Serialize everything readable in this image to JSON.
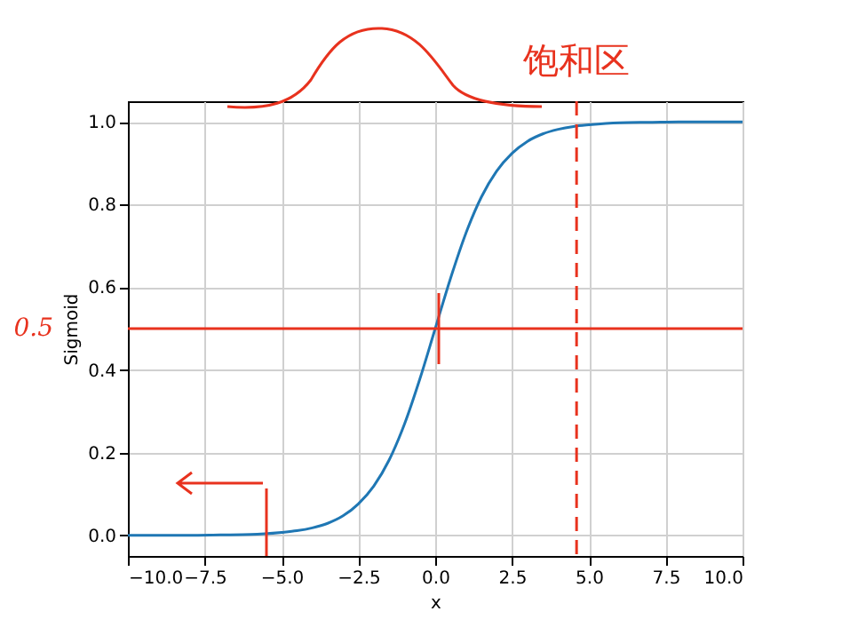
{
  "chart_data": {
    "type": "line",
    "xlabel": "x",
    "ylabel": "Sigmoid",
    "x": [
      -10,
      -9,
      -8,
      -7,
      -6,
      -5,
      -4.5,
      -4,
      -3.5,
      -3,
      -2.5,
      -2,
      -1.5,
      -1,
      -0.5,
      0,
      0.5,
      1,
      1.5,
      2,
      2.5,
      3,
      3.5,
      4,
      4.5,
      5,
      6,
      7,
      8,
      9,
      10
    ],
    "series": [
      {
        "color": "#1f77b4",
        "values": [
          0.0,
          0.0,
          0.0,
          0.001,
          0.002,
          0.007,
          0.011,
          0.018,
          0.029,
          0.047,
          0.076,
          0.119,
          0.182,
          0.269,
          0.378,
          0.5,
          0.622,
          0.731,
          0.818,
          0.881,
          0.924,
          0.953,
          0.971,
          0.982,
          0.989,
          0.993,
          0.998,
          0.999,
          1.0,
          1.0,
          1.0
        ]
      }
    ],
    "xlim": [
      -10,
      10
    ],
    "ylim": [
      -0.05,
      1.05
    ],
    "xticks": [
      {
        "value": -10,
        "label": "−10.0"
      },
      {
        "value": -7.5,
        "label": "−7.5"
      },
      {
        "value": -5,
        "label": "−5.0"
      },
      {
        "value": -2.5,
        "label": "−2.5"
      },
      {
        "value": 0,
        "label": "0.0"
      },
      {
        "value": 2.5,
        "label": "2.5"
      },
      {
        "value": 5,
        "label": "5.0"
      },
      {
        "value": 7.5,
        "label": "7.5"
      },
      {
        "value": 10,
        "label": "10.0"
      }
    ],
    "yticks": [
      {
        "value": 0,
        "label": "0.0"
      },
      {
        "value": 0.2,
        "label": "0.2"
      },
      {
        "value": 0.4,
        "label": "0.4"
      },
      {
        "value": 0.6,
        "label": "0.6"
      },
      {
        "value": 0.8,
        "label": "0.8"
      },
      {
        "value": 1,
        "label": "1.0"
      }
    ],
    "ref_lines": [
      {
        "axis": "y",
        "value": 0.5,
        "label": "0.5",
        "color": "#e8321e",
        "line_style": "solid"
      },
      {
        "axis": "x",
        "value": 4.6,
        "label": "饱和区",
        "color": "#e8321e",
        "line_style": "dashed"
      }
    ],
    "grid": true,
    "marker": "none",
    "line_style": "solid"
  }
}
